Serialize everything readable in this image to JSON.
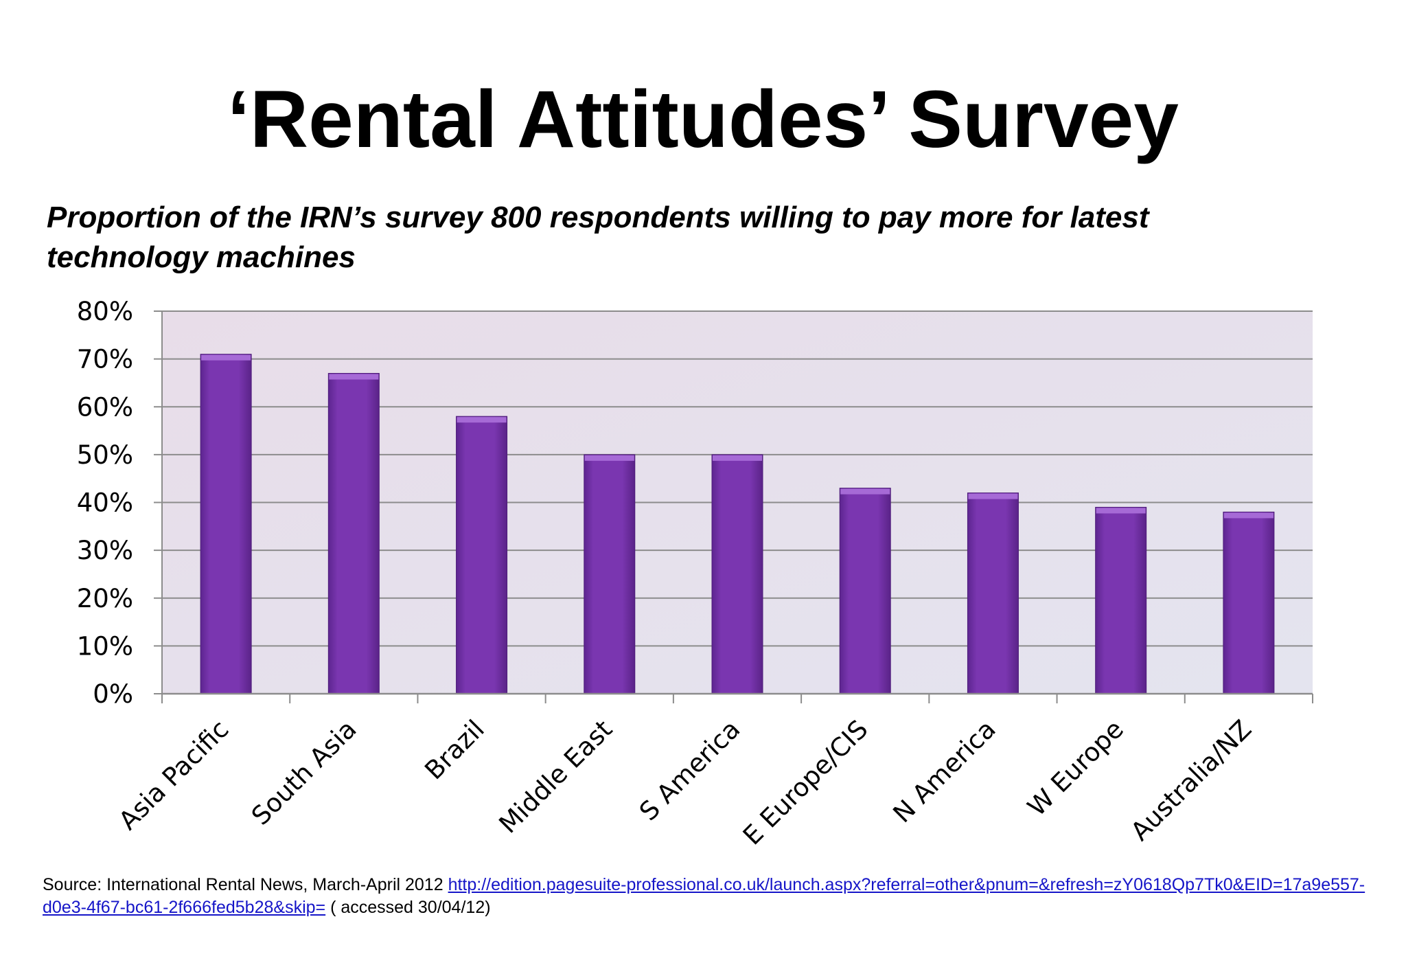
{
  "title": "‘Rental Attitudes’ Survey",
  "subtitle": "Proportion of the IRN’s survey 800 respondents willing to pay more for latest technology machines",
  "source": {
    "prefix": "Source: International Rental News, March-April 2012 ",
    "link_text": "http://edition.pagesuite-professional.co.uk/launch.aspx?referral=other&pnum=&refresh=zY0618Qp7Tk0&EID=17a9e557-d0e3-4f67-bc61-2f666fed5b28&skip=",
    "suffix": " ( accessed 30/04/12)"
  },
  "colors": {
    "bar": "#7733aa",
    "bar_top": "#a66ad6",
    "plot_bg": "#e7dfec",
    "grid": "#8c8c8c",
    "link": "#1515c8"
  },
  "chart_data": {
    "type": "bar",
    "categories": [
      "Asia Pacific",
      "South Asia",
      "Brazil",
      "Middle East",
      "S America",
      "E Europe/CIS",
      "N America",
      "W Europe",
      "Australia/NZ"
    ],
    "values": [
      0.71,
      0.67,
      0.58,
      0.5,
      0.5,
      0.43,
      0.42,
      0.39,
      0.38
    ],
    "ylim": [
      0,
      0.8
    ],
    "yticks": [
      0,
      0.1,
      0.2,
      0.3,
      0.4,
      0.5,
      0.6,
      0.7,
      0.8
    ],
    "ytick_labels": [
      "0%",
      "10%",
      "20%",
      "30%",
      "40%",
      "50%",
      "60%",
      "70%",
      "80%"
    ],
    "grid": true,
    "legend": false,
    "xlabel": "",
    "ylabel": ""
  }
}
